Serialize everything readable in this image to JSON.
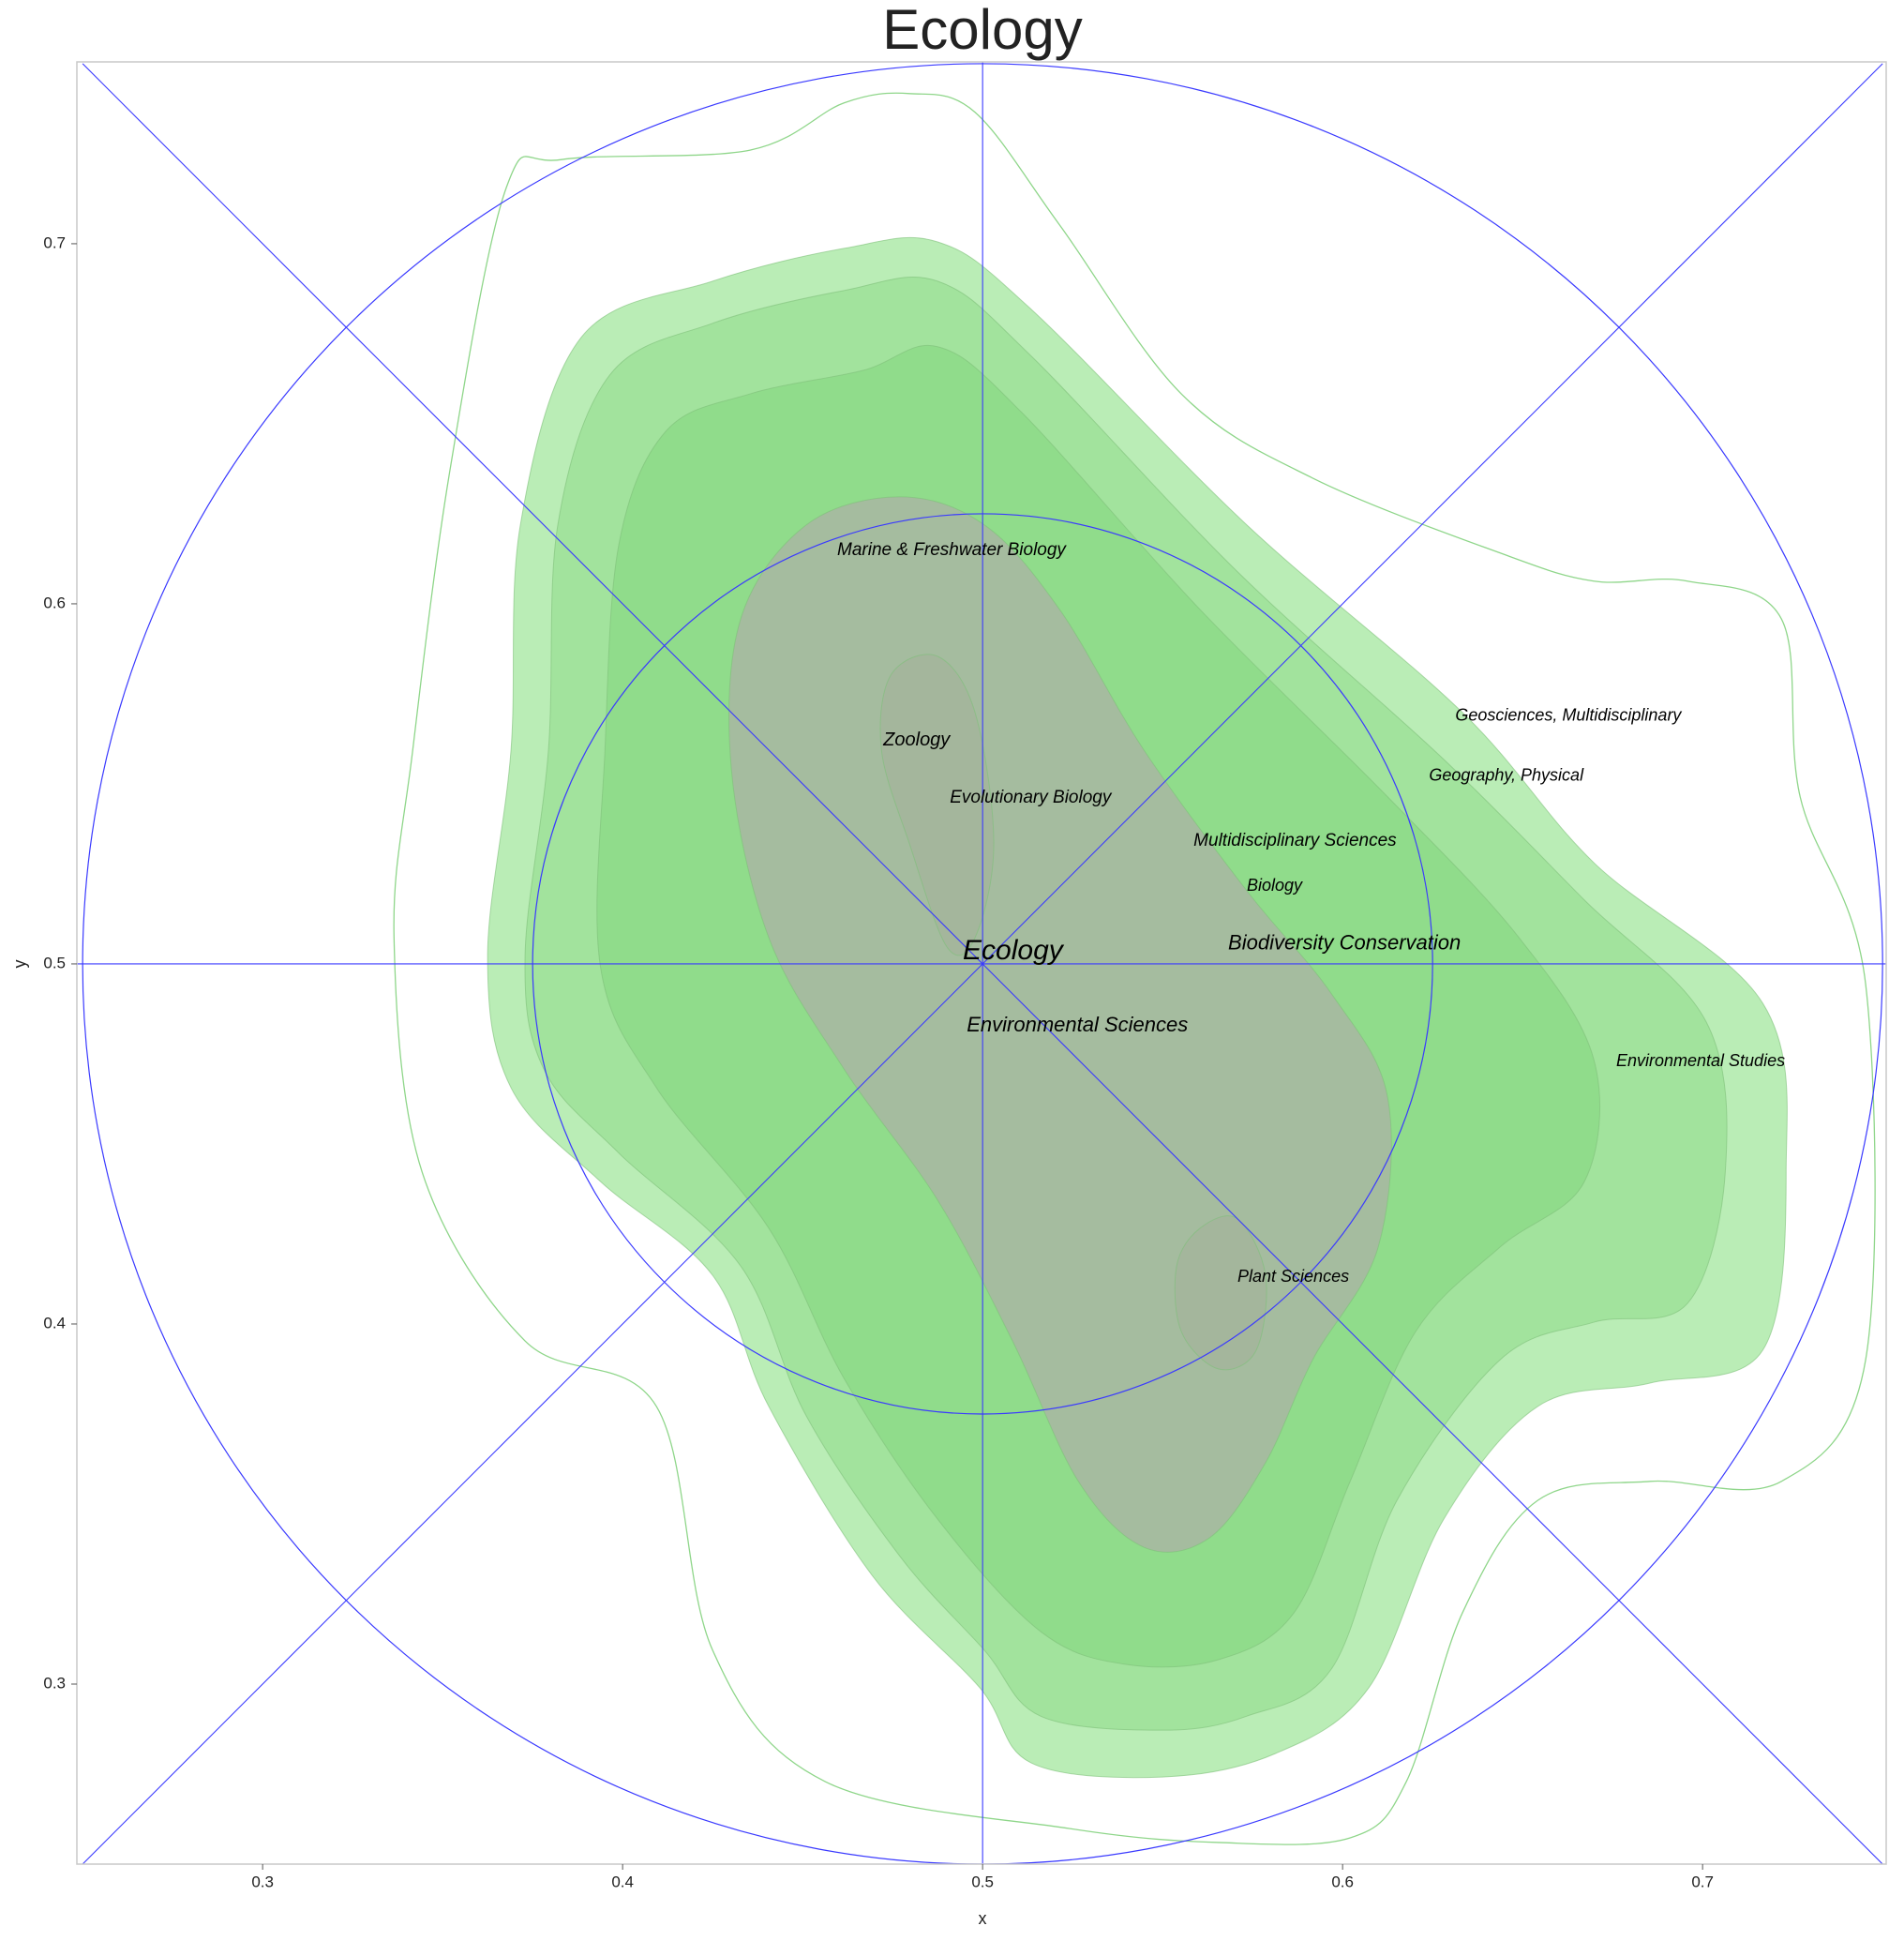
{
  "chart_data": {
    "type": "contour",
    "title": "Ecology",
    "xlabel": "x",
    "ylabel": "y",
    "xlim": [
      0.2484,
      0.751
    ],
    "ylim": [
      0.25,
      0.7505
    ],
    "xticks": [
      0.3,
      0.4,
      0.5,
      0.6,
      0.7
    ],
    "yticks": [
      0.3,
      0.4,
      0.5,
      0.6,
      0.7
    ],
    "grid": false,
    "contours": [
      {
        "color": "#8fd68a",
        "filled": false,
        "x": [
          0.4797,
          0.4979,
          0.5214,
          0.5552,
          0.5917,
          0.6438,
          0.6698,
          0.6958,
          0.7219,
          0.7271,
          0.7453,
          0.7453,
          0.7219,
          0.6854,
          0.6542,
          0.6333,
          0.6177,
          0.6021,
          0.5656,
          0.524,
          0.4563,
          0.425,
          0.4094,
          0.3729,
          0.3443,
          0.3365,
          0.3417,
          0.3521,
          0.3677,
          0.3833,
          0.4354,
          0.4615
        ],
        "y": [
          0.7417,
          0.7365,
          0.7052,
          0.6583,
          0.6349,
          0.6141,
          0.6063,
          0.6063,
          0.5958,
          0.5464,
          0.4943,
          0.3901,
          0.3563,
          0.3563,
          0.351,
          0.3198,
          0.2729,
          0.2573,
          0.256,
          0.2599,
          0.2729,
          0.3094,
          0.3771,
          0.3953,
          0.4422,
          0.5073,
          0.5594,
          0.6375,
          0.7156,
          0.7234,
          0.726,
          0.7391
        ]
      },
      {
        "color": "#b6ecb2",
        "filled": true,
        "x": [
          0.4875,
          0.5135,
          0.5734,
          0.6333,
          0.6698,
          0.7167,
          0.7232,
          0.7167,
          0.6854,
          0.6542,
          0.6281,
          0.6073,
          0.5813,
          0.55,
          0.5135,
          0.4992,
          0.4693,
          0.4406,
          0.425,
          0.3938,
          0.369,
          0.3625,
          0.369,
          0.3716,
          0.3885,
          0.425,
          0.4615
        ],
        "y": [
          0.7005,
          0.6818,
          0.6219,
          0.5698,
          0.5281,
          0.4891,
          0.4422,
          0.3927,
          0.3836,
          0.3771,
          0.3458,
          0.299,
          0.2807,
          0.2742,
          0.2781,
          0.299,
          0.3302,
          0.3771,
          0.4135,
          0.4396,
          0.4656,
          0.5021,
          0.5594,
          0.6219,
          0.674,
          0.6896,
          0.6987
        ]
      },
      {
        "color": "#a0e39c",
        "filled": true,
        "x": [
          0.4875,
          0.5135,
          0.5708,
          0.6281,
          0.6672,
          0.701,
          0.7063,
          0.6958,
          0.6698,
          0.6438,
          0.6151,
          0.5969,
          0.5734,
          0.55,
          0.5161,
          0.5005,
          0.4771,
          0.451,
          0.4328,
          0.399,
          0.3781,
          0.3729,
          0.3794,
          0.382,
          0.3964,
          0.425,
          0.4615
        ],
        "y": [
          0.6896,
          0.6688,
          0.6089,
          0.5568,
          0.5177,
          0.4839,
          0.4422,
          0.4057,
          0.4005,
          0.3901,
          0.351,
          0.3042,
          0.2911,
          0.2872,
          0.2911,
          0.3094,
          0.3354,
          0.3745,
          0.4161,
          0.4474,
          0.4708,
          0.5021,
          0.5594,
          0.6219,
          0.6635,
          0.6779,
          0.687
        ]
      },
      {
        "color": "#8fdb8a",
        "filled": true,
        "x": [
          0.4875,
          0.5109,
          0.5604,
          0.6125,
          0.649,
          0.6698,
          0.6672,
          0.6438,
          0.6203,
          0.6021,
          0.5865,
          0.5656,
          0.5396,
          0.5161,
          0.4875,
          0.4615,
          0.4406,
          0.4094,
          0.3938,
          0.3951,
          0.399,
          0.412,
          0.4354,
          0.4667
        ],
        "y": [
          0.6714,
          0.6531,
          0.5984,
          0.5464,
          0.5073,
          0.4734,
          0.4396,
          0.4214,
          0.3979,
          0.3563,
          0.3198,
          0.3068,
          0.3055,
          0.3146,
          0.3458,
          0.3849,
          0.4266,
          0.4656,
          0.4995,
          0.5594,
          0.6167,
          0.6479,
          0.6583,
          0.6648
        ]
      },
      {
        "color": "#a6b9a0",
        "filled": true,
        "x": [
          0.4771,
          0.5005,
          0.5214,
          0.5448,
          0.5734,
          0.5969,
          0.6125,
          0.6099,
          0.5917,
          0.5786,
          0.563,
          0.5448,
          0.5266,
          0.5083,
          0.4875,
          0.4615,
          0.4406,
          0.4302,
          0.4328,
          0.451
        ],
        "y": [
          0.6297,
          0.6219,
          0.5984,
          0.5594,
          0.5203,
          0.4917,
          0.463,
          0.4214,
          0.3901,
          0.3615,
          0.3406,
          0.338,
          0.3563,
          0.3953,
          0.4344,
          0.4708,
          0.5073,
          0.5542,
          0.5958,
          0.6219
        ]
      },
      {
        "color": "#a3b59c",
        "filled": true,
        "x": [
          0.4745,
          0.4875,
          0.4979,
          0.5031,
          0.4979,
          0.4901,
          0.4797,
          0.4719
        ],
        "y": [
          0.5802,
          0.5854,
          0.5698,
          0.5333,
          0.5073,
          0.5047,
          0.5333,
          0.5594
        ]
      },
      {
        "color": "#a3b59c",
        "filled": true,
        "x": [
          0.5604,
          0.5708,
          0.5786,
          0.576,
          0.5656,
          0.5552,
          0.5539
        ],
        "y": [
          0.4266,
          0.4292,
          0.4135,
          0.3927,
          0.3875,
          0.3979,
          0.4161
        ]
      }
    ],
    "reference_color": "#3a3aff",
    "reference_circles": [
      {
        "cx": 0.5,
        "cy": 0.5,
        "r": 0.25
      },
      {
        "cx": 0.5,
        "cy": 0.5,
        "r": 0.125
      }
    ],
    "reference_lines": [
      {
        "x": [
          0.25,
          0.75
        ],
        "y": [
          0.25,
          0.75
        ]
      },
      {
        "x": [
          0.25,
          0.75
        ],
        "y": [
          0.75,
          0.25
        ]
      },
      {
        "x": [
          0.2484,
          0.751
        ],
        "y": [
          0.5,
          0.5
        ]
      },
      {
        "x": [
          0.5,
          0.5
        ],
        "y": [
          0.25,
          0.7505
        ]
      }
    ],
    "labels": {
      "texts": [
        "Marine & Freshwater Biology",
        "Zoology",
        "Evolutionary Biology",
        "Multidisciplinary Sciences",
        "Biology",
        "Ecology",
        "Biodiversity Conservation",
        "Environmental Sciences",
        "Geosciences, Multidisciplinary",
        "Geography, Physical",
        "Environmental Studies",
        "Plant Sciences"
      ],
      "x": [
        0.4596,
        0.4724,
        0.4909,
        0.5586,
        0.5734,
        0.4945,
        0.5682,
        0.4956,
        0.6313,
        0.624,
        0.676,
        0.5708
      ],
      "y": [
        0.6148,
        0.562,
        0.5461,
        0.5341,
        0.5216,
        0.5034,
        0.5055,
        0.4828,
        0.5688,
        0.5521,
        0.4729,
        0.413
      ],
      "sizes": [
        19,
        20,
        19,
        19,
        18,
        30,
        22,
        22,
        18,
        18,
        18,
        18
      ]
    }
  }
}
